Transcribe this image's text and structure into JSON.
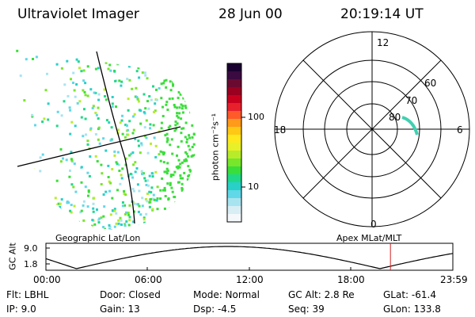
{
  "header": {
    "title": "Ultraviolet Imager",
    "date": "28 Jun 00",
    "time": "20:19:14 UT"
  },
  "colorbar": {
    "unit_label": "photon cm⁻²s⁻¹",
    "tick_100": "100",
    "tick_10": "10",
    "colors_top_to_bottom": [
      "#1a0030",
      "#3a0a40",
      "#6a0a30",
      "#9a0020",
      "#c8001e",
      "#e8202c",
      "#ff5a2a",
      "#ff9a1a",
      "#ffc814",
      "#ffe81e",
      "#e8f02a",
      "#b8ec2a",
      "#78e62a",
      "#3ade3a",
      "#20d888",
      "#28d0c8",
      "#60d8e8",
      "#a8e4f0",
      "#d8eef4",
      "#f4f8fa"
    ]
  },
  "geo_panel": {
    "label": "Geographic Lat/Lon"
  },
  "apex_panel": {
    "label": "Apex MLat/MLT",
    "mlt_12": "12",
    "mlt_18": "18",
    "mlt_6": "6",
    "mlt_0": "0",
    "lat_60": "60",
    "lat_70": "70",
    "lat_80": "80"
  },
  "altitude_plot": {
    "ylabel": "GC Alt",
    "y_top": "9.0",
    "y_bottom": "1.8",
    "x_ticks": [
      "00:00",
      "06:00",
      "12:00",
      "18:00",
      "23:59"
    ],
    "current_time_marker_hours": 20.32
  },
  "status": {
    "filter": "Flt: LBHL",
    "ip": "IP:  9.0",
    "door": "Door: Closed",
    "gain": "Gain: 13",
    "mode": "Mode: Normal",
    "dsp": "Dsp:    -4.5",
    "gc_alt": "GC Alt: 2.8 Re",
    "seq": "Seq: 39",
    "glat": "GLat: -61.4",
    "glon": "GLon: 133.8"
  }
}
